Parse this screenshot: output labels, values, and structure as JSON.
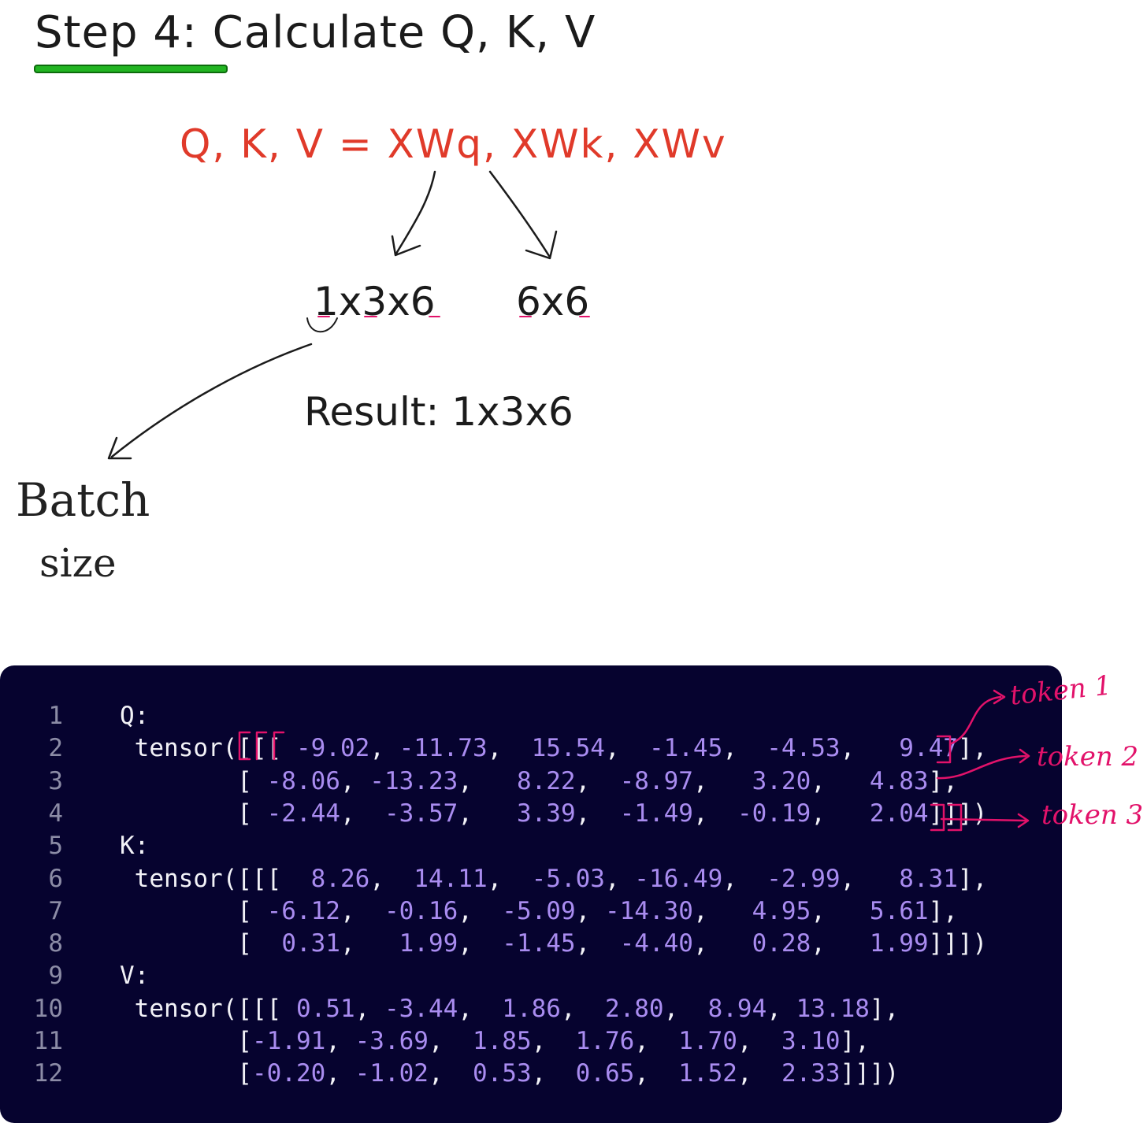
{
  "title": "Step 4: Calculate Q, K, V",
  "formula": "Q, K, V = XWq, XWk, XWv",
  "shapes": {
    "input": "1x3x6",
    "weight": "6x6"
  },
  "result": "Result: 1x3x6",
  "annotation": {
    "line1": "Batch",
    "line2": "size"
  },
  "code": {
    "lines": [
      {
        "number": "1",
        "parts": [
          "Q:"
        ]
      },
      {
        "number": "2",
        "parts": [
          " tensor([[[ ",
          "-9.02",
          ", ",
          "-11.73",
          ",  ",
          "15.54",
          ",  ",
          "-1.45",
          ",  ",
          "-4.53",
          ",   ",
          "9.47",
          "],"
        ]
      },
      {
        "number": "3",
        "parts": [
          "        [ ",
          "-8.06",
          ", ",
          "-13.23",
          ",   ",
          "8.22",
          ",  ",
          "-8.97",
          ",   ",
          "3.20",
          ",   ",
          "4.83",
          "],"
        ]
      },
      {
        "number": "4",
        "parts": [
          "        [ ",
          "-2.44",
          ",  ",
          "-3.57",
          ",   ",
          "3.39",
          ",  ",
          "-1.49",
          ",  ",
          "-0.19",
          ",   ",
          "2.04",
          "]]])"
        ]
      },
      {
        "number": "5",
        "parts": [
          "K:"
        ]
      },
      {
        "number": "6",
        "parts": [
          " tensor([[[  ",
          "8.26",
          ",  ",
          "14.11",
          ",  ",
          "-5.03",
          ", ",
          "-16.49",
          ",  ",
          "-2.99",
          ",   ",
          "8.31",
          "],"
        ]
      },
      {
        "number": "7",
        "parts": [
          "        [ ",
          "-6.12",
          ",  ",
          "-0.16",
          ",  ",
          "-5.09",
          ", ",
          "-14.30",
          ",   ",
          "4.95",
          ",   ",
          "5.61",
          "],"
        ]
      },
      {
        "number": "8",
        "parts": [
          "        [  ",
          "0.31",
          ",   ",
          "1.99",
          ",  ",
          "-1.45",
          ",  ",
          "-4.40",
          ",   ",
          "0.28",
          ",   ",
          "1.99",
          "]]])"
        ]
      },
      {
        "number": "9",
        "parts": [
          "V:"
        ]
      },
      {
        "number": "10",
        "parts": [
          " tensor([[[ ",
          "0.51",
          ", ",
          "-3.44",
          ",  ",
          "1.86",
          ",  ",
          "2.80",
          ",  ",
          "8.94",
          ", ",
          "13.18",
          "],"
        ]
      },
      {
        "number": "11",
        "parts": [
          "        [",
          "-1.91",
          ", ",
          "-3.69",
          ",  ",
          "1.85",
          ",  ",
          "1.76",
          ",  ",
          "1.70",
          ",  ",
          "3.10",
          "],"
        ]
      },
      {
        "number": "12",
        "parts": [
          "        [",
          "-0.20",
          ", ",
          "-1.02",
          ",  ",
          "0.53",
          ",  ",
          "0.65",
          ",  ",
          "1.52",
          ",  ",
          "2.33",
          "]]])"
        ]
      }
    ]
  },
  "tokens": [
    "token 1",
    "token 2",
    "token 3"
  ]
}
